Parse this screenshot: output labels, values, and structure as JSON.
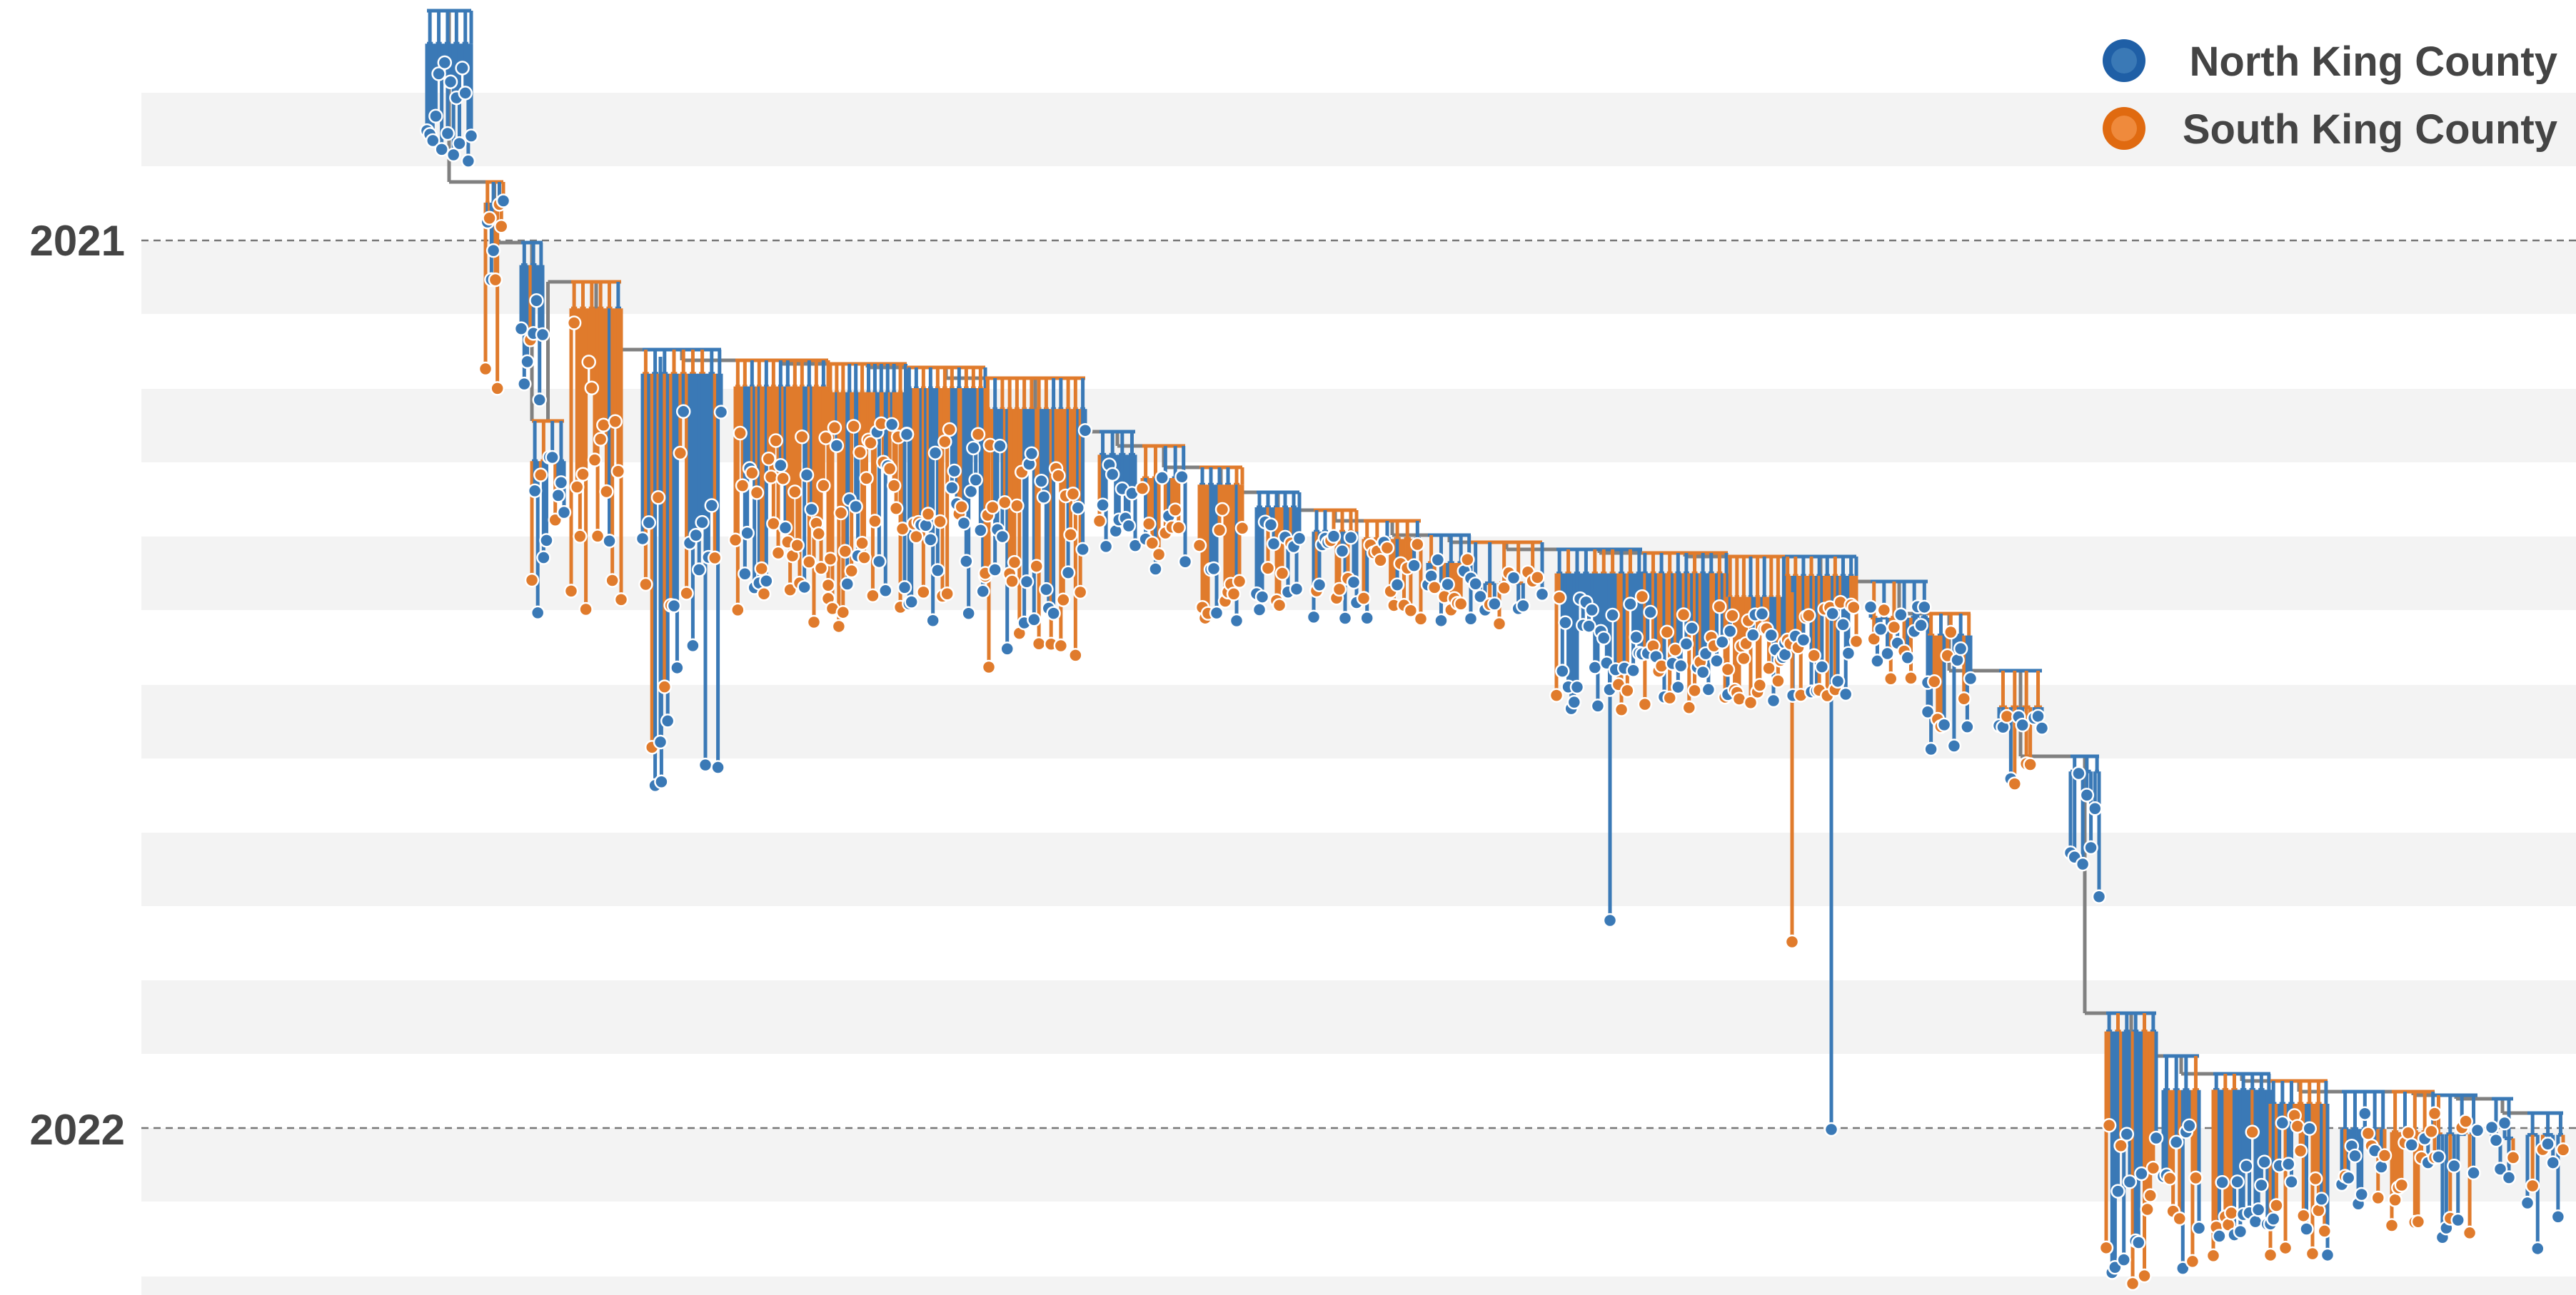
{
  "chart_data": {
    "type": "phylogenetic-tree",
    "title": "",
    "xlabel": "",
    "ylabel": "",
    "y_ticks": [
      "2021",
      "2022"
    ],
    "legend": {
      "placement": "top-right",
      "entries": [
        {
          "name": "North King County",
          "color": "#3a79b6"
        },
        {
          "name": "South King County",
          "color": "#e07b2c"
        }
      ]
    },
    "grid": true,
    "orientation": "time runs top-to-bottom; tips spread left-to-right",
    "series": [
      {
        "name": "North King County",
        "color": "#3a79b6"
      },
      {
        "name": "South King County",
        "color": "#e07b2c"
      }
    ]
  },
  "colors": {
    "north": "#3a79b6",
    "south": "#e07b2c",
    "unknown_branch": "#808080",
    "band": "#f3f3f3",
    "dashed_line": "#777777",
    "text": "#444444"
  }
}
